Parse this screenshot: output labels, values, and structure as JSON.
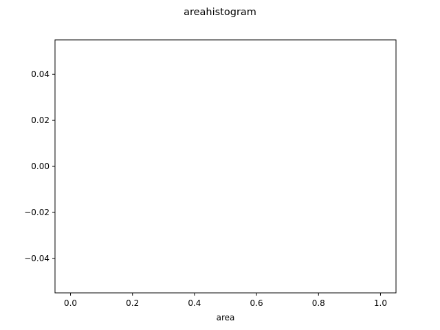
{
  "chart_data": {
    "type": "bar",
    "title": "areahistogram",
    "xlabel": "area",
    "ylabel": "",
    "xlim": [
      -0.05,
      1.05
    ],
    "ylim": [
      -0.055,
      0.055
    ],
    "xticks": [
      0.0,
      0.2,
      0.4,
      0.6,
      0.8,
      1.0
    ],
    "xtick_labels": [
      "0.0",
      "0.2",
      "0.4",
      "0.6",
      "0.8",
      "1.0"
    ],
    "yticks": [
      -0.04,
      -0.02,
      0.0,
      0.02,
      0.04
    ],
    "ytick_labels": [
      "−0.04",
      "−0.02",
      "0.00",
      "0.02",
      "0.04"
    ],
    "series": [],
    "grid": false,
    "legend": "none"
  }
}
